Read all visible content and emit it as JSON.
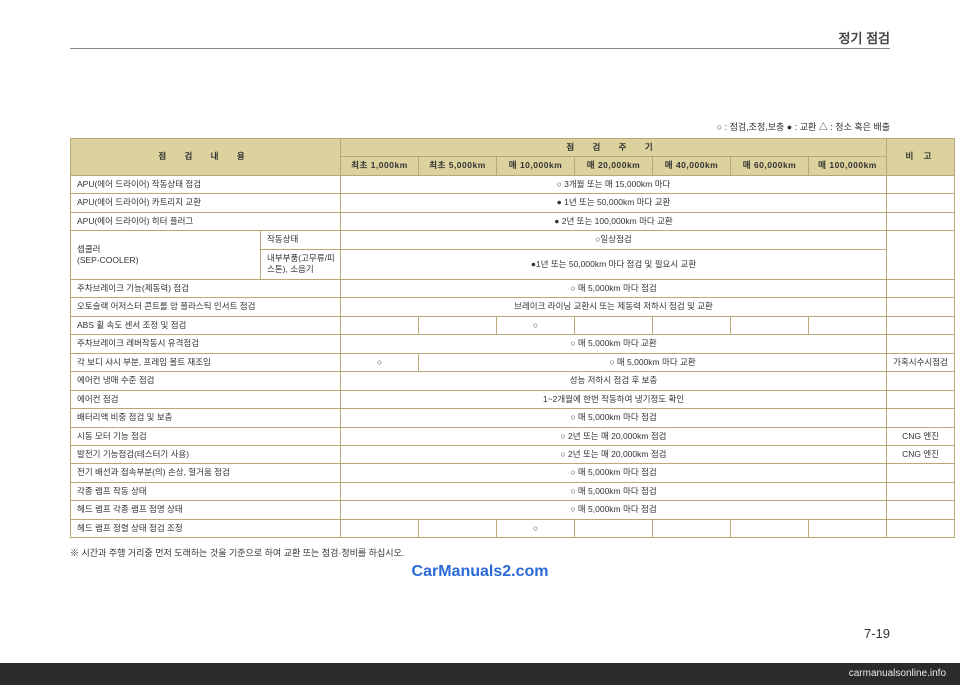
{
  "page": {
    "title": "정기 점검",
    "legend": "○ : 점검,조정,보충  ● : 교환  △ : 청소 혹은 배출",
    "footnote": "※ 시간과 주행 거리중 먼저 도래하는 것을 기준으로 하여 교환 또는 점검·정비를 하십시오.",
    "watermark": "CarManuals2.com",
    "page_number": "7-19",
    "bottom_site": "carmanualsonline.info"
  },
  "headers": {
    "inspection_item": "점 검 내 용",
    "inspection_period": "점 검 주 기",
    "remark": "비 고",
    "periods": [
      "최초 1,000km",
      "최초 5,000km",
      "매 10,000km",
      "매 20,000km",
      "매 40,000km",
      "매 60,000km",
      "매 100,000km"
    ]
  },
  "rows": [
    {
      "item": "APU(에어 드라이어) 작동상태 점검",
      "span": "○ 3개월 또는 매 15,000km 마다",
      "remark": ""
    },
    {
      "item": "APU(에어 드라이어) 카트리지 교환",
      "span": "● 1년 또는 50,000km 마다 교환",
      "remark": ""
    },
    {
      "item": "APU(에어 드라이어) 히터 플러그",
      "span": "● 2년 또는 100,000km 마다 교환",
      "remark": ""
    },
    {
      "split": true,
      "left": "셉쿨러\n(SEP-COOLER)",
      "sub1": "작동상태",
      "span1": "○일상점검",
      "sub2": "내부부품(고무류/피스톤), 소음기",
      "span2": "●1년 또는 50,000km 마다 점검 및 필요시 교환",
      "remark": ""
    },
    {
      "item": "주차브레이크 기능(제동력) 점검",
      "span": "○ 매 5,000km 마다 점검",
      "remark": ""
    },
    {
      "item": "오토슬랙 어저스터 콘트롤 암 플라스틱 인서트 점검",
      "span": "브레이크 라이닝 교환시 또는 제동력 저하시 점검 및 교환",
      "remark": ""
    },
    {
      "item": "ABS 휠 속도 센서 조정 및 점검",
      "cells": [
        "",
        "",
        "○",
        "",
        "",
        "",
        ""
      ],
      "remark": ""
    },
    {
      "item": "주차브레이크 레버작동시 유격점검",
      "span": "○ 매 5,000km 마다 교환",
      "remark": ""
    },
    {
      "item": "각 보디 샤시 부분, 프레임 볼트 재조임",
      "first": "○",
      "rest_span": "○ 매 5,000km 마다 교환",
      "remark": "가혹시수시점검"
    },
    {
      "item": "에어컨 냉매 수준 점검",
      "span": "성능 저하시 점검 후 보충",
      "remark": ""
    },
    {
      "item": "에어컨 점검",
      "span": "1~2개월에 한번 작동하여 냉기정도 확인",
      "remark": ""
    },
    {
      "item": "배터리액 비중 점검 및 보충",
      "span": "○ 매 5,000km 마다 점검",
      "remark": ""
    },
    {
      "item": "시동 모터 기능 점검",
      "span": "○ 2년 또는 매 20,000km 점검",
      "remark": "CNG 엔진"
    },
    {
      "item": "발전기 기능점검(테스터기 사용)",
      "span": "○ 2년 또는 매 20,000km 점검",
      "remark": "CNG 엔진"
    },
    {
      "item": "전기 배선과 접속부분(의) 손상, 헐거움 점검",
      "span": "○ 매 5,000km 마다 점검",
      "remark": ""
    },
    {
      "item": "각종 램프 작동 상태",
      "span": "○ 매 5,000km 마다 점검",
      "remark": ""
    },
    {
      "item": "헤드 램프 각종 램프 점명 상태",
      "span": "○ 매 5,000km 마다 점검",
      "remark": ""
    },
    {
      "item": "헤드 램프 정렬 상태 점검 조정",
      "cells": [
        "",
        "",
        "○",
        "",
        "",
        "",
        ""
      ],
      "remark": ""
    }
  ]
}
